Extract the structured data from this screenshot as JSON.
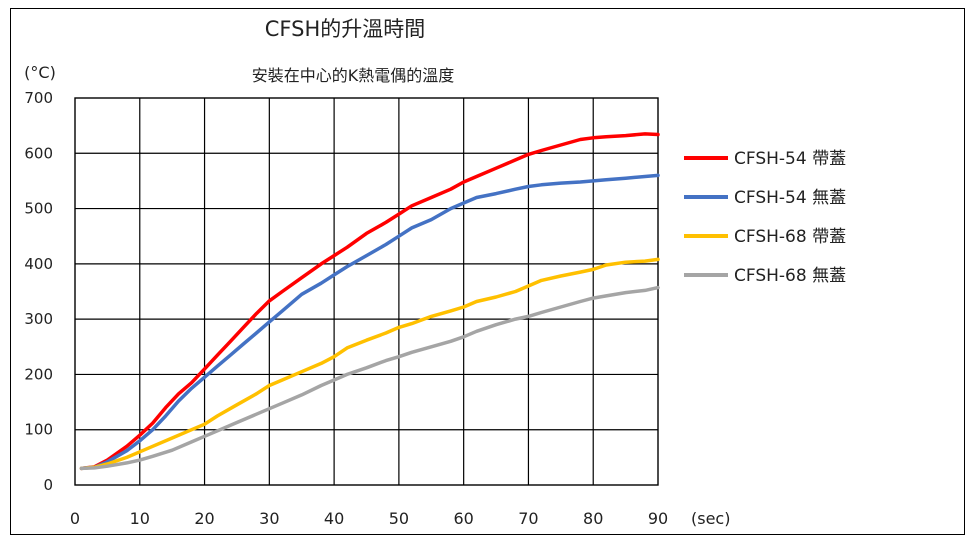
{
  "chart_data": {
    "type": "line",
    "title": "CFSH的升溫時間",
    "subtitle": "安裝在中心的K熱電偶的溫度",
    "xlabel": "(sec)",
    "ylabel": "(°C)",
    "xlim": [
      0,
      90
    ],
    "ylim": [
      0,
      700
    ],
    "xticks": [
      0,
      10,
      20,
      30,
      40,
      50,
      60,
      70,
      80,
      90
    ],
    "yticks": [
      0,
      100,
      200,
      300,
      400,
      500,
      600,
      700
    ],
    "grid": true,
    "legend": "right",
    "series": [
      {
        "name": "CFSH-54 帶蓋",
        "color": "#ff0000",
        "x": [
          1,
          3,
          5,
          8,
          10,
          12,
          14,
          16,
          18,
          20,
          22,
          24,
          26,
          28,
          30,
          32,
          35,
          38,
          40,
          42,
          45,
          48,
          50,
          52,
          55,
          58,
          60,
          62,
          65,
          68,
          70,
          72,
          75,
          78,
          80,
          82,
          85,
          88,
          90
        ],
        "y": [
          30,
          33,
          45,
          70,
          90,
          112,
          140,
          165,
          185,
          210,
          235,
          260,
          285,
          310,
          333,
          350,
          375,
          400,
          415,
          430,
          455,
          475,
          490,
          505,
          520,
          535,
          548,
          558,
          573,
          588,
          598,
          605,
          615,
          625,
          628,
          630,
          632,
          635,
          634
        ]
      },
      {
        "name": "CFSH-54 無蓋",
        "color": "#4472c4",
        "x": [
          1,
          3,
          5,
          8,
          10,
          12,
          14,
          16,
          18,
          20,
          22,
          24,
          26,
          28,
          30,
          32,
          35,
          38,
          40,
          42,
          45,
          48,
          50,
          52,
          55,
          58,
          60,
          62,
          65,
          68,
          70,
          72,
          75,
          78,
          80,
          82,
          85,
          88,
          90
        ],
        "y": [
          30,
          32,
          42,
          62,
          80,
          100,
          125,
          152,
          175,
          195,
          215,
          235,
          255,
          275,
          295,
          315,
          345,
          365,
          380,
          395,
          415,
          435,
          450,
          465,
          480,
          500,
          510,
          520,
          527,
          535,
          540,
          543,
          546,
          548,
          550,
          552,
          555,
          558,
          560
        ]
      },
      {
        "name": "CFSH-68 帶蓋",
        "color": "#ffc000",
        "x": [
          1,
          3,
          5,
          8,
          10,
          12,
          15,
          18,
          20,
          22,
          25,
          28,
          30,
          32,
          35,
          38,
          40,
          42,
          45,
          48,
          50,
          52,
          55,
          58,
          60,
          62,
          65,
          68,
          70,
          72,
          75,
          78,
          80,
          82,
          85,
          88,
          90
        ],
        "y": [
          30,
          32,
          38,
          50,
          60,
          70,
          85,
          100,
          110,
          125,
          145,
          165,
          180,
          190,
          205,
          220,
          232,
          248,
          262,
          275,
          285,
          292,
          305,
          315,
          322,
          332,
          340,
          350,
          360,
          370,
          378,
          385,
          390,
          398,
          403,
          405,
          408
        ]
      },
      {
        "name": "CFSH-68 無蓋",
        "color": "#a5a5a5",
        "x": [
          1,
          3,
          5,
          8,
          10,
          12,
          15,
          18,
          20,
          22,
          25,
          28,
          30,
          32,
          35,
          38,
          40,
          42,
          45,
          48,
          50,
          52,
          55,
          58,
          60,
          62,
          65,
          68,
          70,
          72,
          75,
          78,
          80,
          82,
          85,
          88,
          90
        ],
        "y": [
          30,
          31,
          34,
          40,
          45,
          52,
          63,
          78,
          88,
          98,
          113,
          128,
          138,
          148,
          163,
          180,
          190,
          200,
          212,
          225,
          232,
          240,
          250,
          260,
          268,
          278,
          290,
          300,
          305,
          312,
          322,
          332,
          338,
          342,
          348,
          352,
          357
        ]
      }
    ]
  }
}
